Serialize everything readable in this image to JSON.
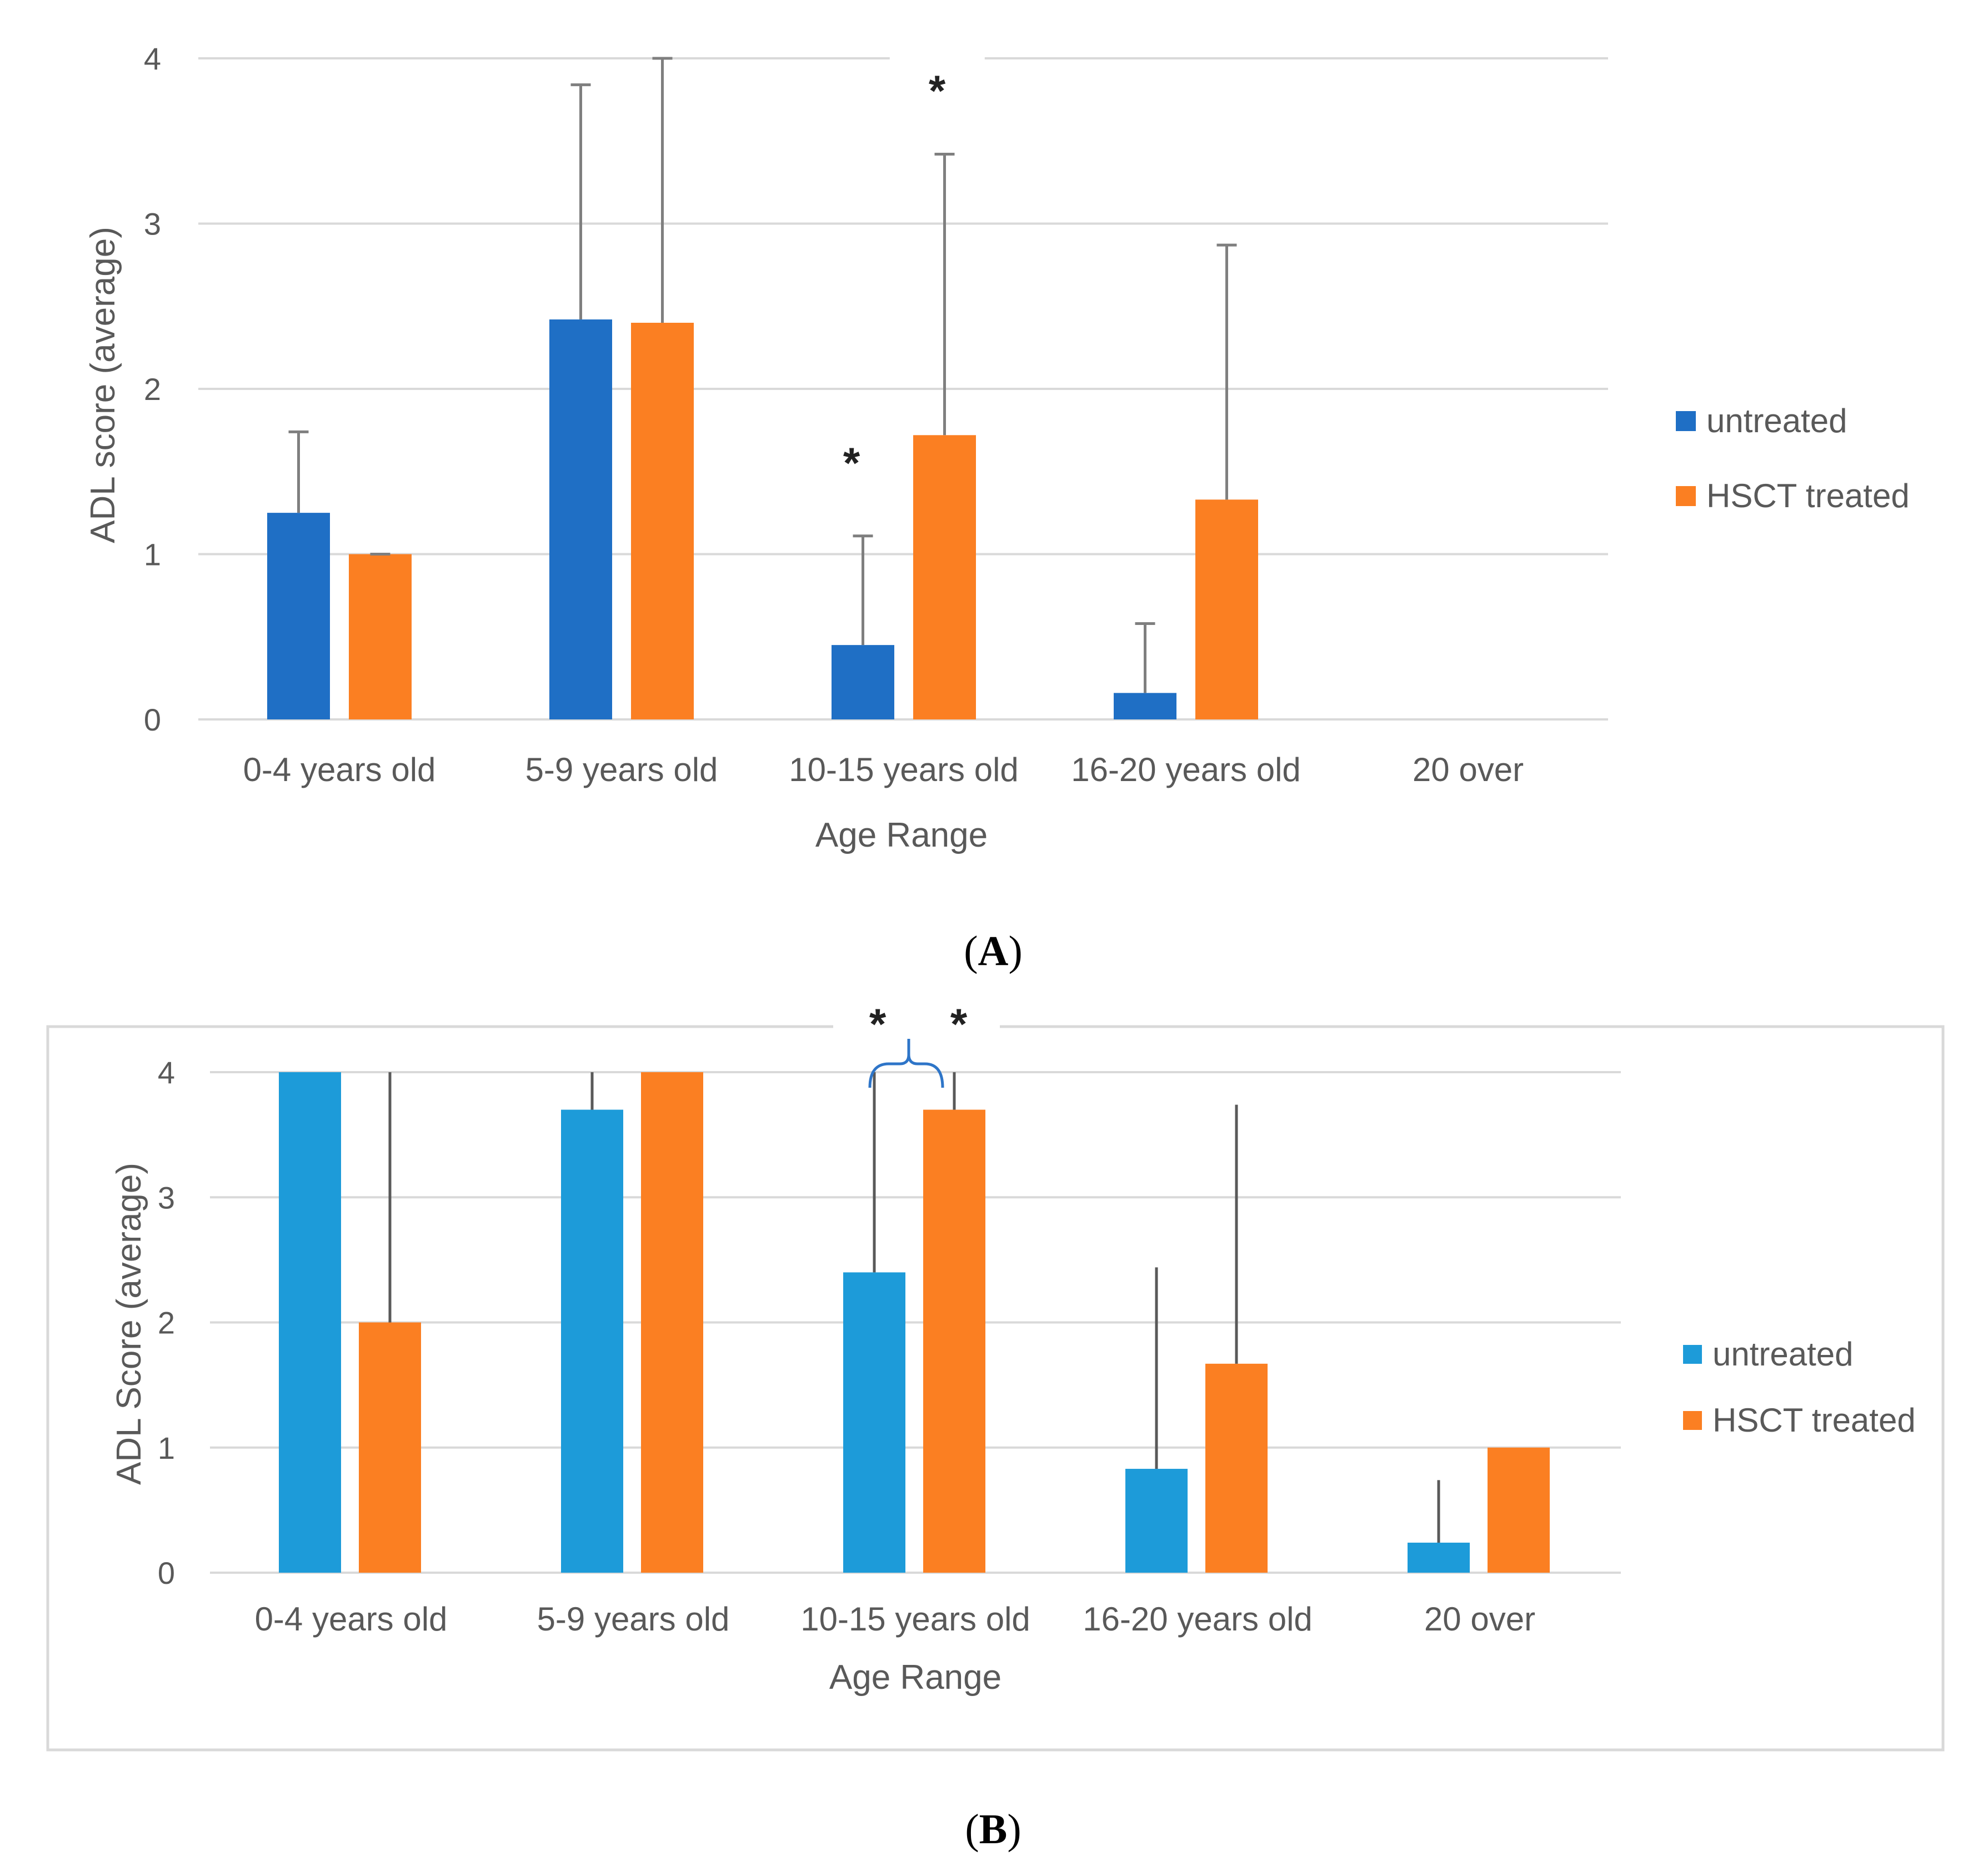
{
  "chart_data": [
    {
      "panel": "A",
      "type": "bar",
      "panel_label": "A",
      "xlabel": "Age Range",
      "ylabel": "ADL score (average)",
      "ylim": [
        0,
        4
      ],
      "yticks": [
        0,
        1,
        2,
        3,
        4
      ],
      "categories": [
        "0-4 years old",
        "5-9 years old",
        "10-15 years old",
        "16-20 years old",
        "20 over"
      ],
      "series": [
        {
          "name": "untreated",
          "color": "#1f6fc5",
          "values": [
            1.25,
            2.42,
            0.45,
            0.16,
            null
          ],
          "errors": [
            0.49,
            1.42,
            0.66,
            0.42,
            null
          ]
        },
        {
          "name": "HSCT treated",
          "color": "#fb7f22",
          "values": [
            1.0,
            2.4,
            1.72,
            1.33,
            null
          ],
          "errors": [
            0.0,
            1.6,
            1.7,
            1.54,
            null
          ]
        }
      ],
      "annotations": [
        {
          "text": "*",
          "category": "10-15 years old",
          "series": "untreated"
        },
        {
          "text": "*",
          "category": "10-15 years old",
          "series": "HSCT treated"
        }
      ],
      "legend_position": "right"
    },
    {
      "panel": "B",
      "type": "bar",
      "panel_label": "B",
      "xlabel": "Age Range",
      "ylabel": "ADL Score (average)",
      "ylim": [
        0,
        4
      ],
      "yticks": [
        0,
        1,
        2,
        3,
        4
      ],
      "categories": [
        "0-4 years old",
        "5-9 years old",
        "10-15 years old",
        "16-20 years old",
        "20 over"
      ],
      "series": [
        {
          "name": "untreated",
          "color": "#1d9bd9",
          "values": [
            4.0,
            3.7,
            2.4,
            0.83,
            0.24
          ],
          "errors": [
            0.0,
            0.3,
            1.6,
            1.61,
            0.5
          ]
        },
        {
          "name": "HSCT treated",
          "color": "#fb7f22",
          "values": [
            2.0,
            4.0,
            3.7,
            1.67,
            1.0
          ],
          "errors": [
            2.0,
            0.0,
            0.3,
            2.07,
            0.0
          ]
        }
      ],
      "annotations": [
        {
          "text": "*",
          "category": "10-15 years old",
          "series": "untreated"
        },
        {
          "text": "*",
          "category": "10-15 years old",
          "series": "HSCT treated"
        }
      ],
      "legend_position": "right"
    }
  ]
}
